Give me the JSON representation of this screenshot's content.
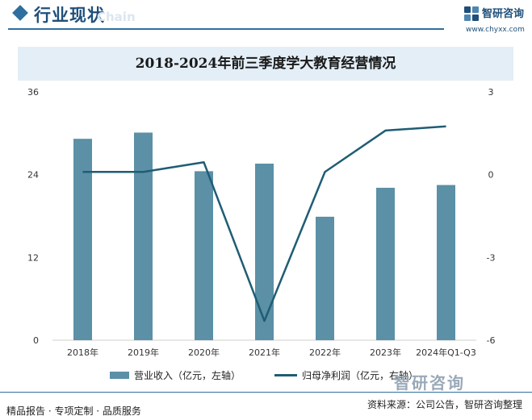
{
  "header": {
    "section_title": "行业现状",
    "ghost_text": "Chain",
    "brand_name": "智研咨询",
    "brand_url": "www.chyxx.com"
  },
  "footer": {
    "left_text": "精品报告 · 专项定制 · 品质服务",
    "right_text": "资料来源：公司公告，智研咨询整理",
    "brand_watermark": "智研咨询"
  },
  "colors": {
    "bar": "#5b90a6",
    "line": "#1f5d74",
    "accent": "#2f6f9f",
    "title_band": "#e3eef6"
  },
  "chart_data": {
    "type": "bar",
    "title": "2018-2024年前三季度学大教育经营情况",
    "categories": [
      "2018年",
      "2019年",
      "2020年",
      "2021年",
      "2022年",
      "2023年",
      "2024年Q1-Q3"
    ],
    "series": [
      {
        "name": "营业收入（亿元，左轴）",
        "type": "bar",
        "axis": "left",
        "values": [
          29.2,
          30.1,
          24.5,
          25.6,
          17.9,
          22.1,
          22.5
        ]
      },
      {
        "name": "归母净利润（亿元，右轴）",
        "type": "line",
        "axis": "right",
        "values": [
          0.1,
          0.1,
          0.45,
          -5.3,
          0.1,
          1.6,
          1.75
        ]
      }
    ],
    "y_left": {
      "min": 0,
      "max": 36,
      "ticks": [
        0,
        12,
        24,
        36
      ]
    },
    "y_right": {
      "min": -6,
      "max": 3,
      "ticks": [
        -6,
        -3,
        0,
        3
      ]
    },
    "grid": false,
    "legend": "bottom"
  }
}
